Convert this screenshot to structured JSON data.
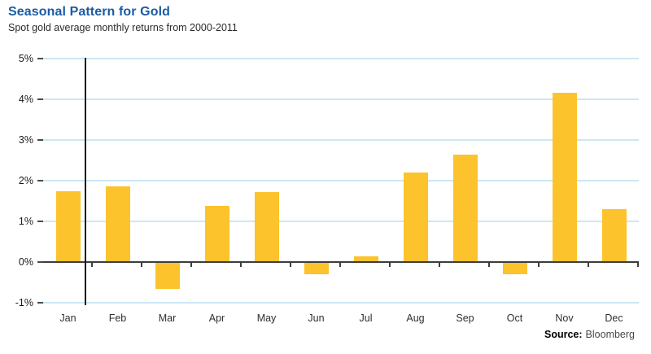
{
  "header": {
    "title": "Seasonal Pattern for Gold",
    "subtitle": "Spot gold average monthly returns from 2000-2011"
  },
  "footer": {
    "source_label": "Source:",
    "source_value": "Bloomberg"
  },
  "colors": {
    "title_blue": "#1A5CA4",
    "bar_gold": "#FDC32C",
    "gridline_blue": "#CBE8F4",
    "zero_line": "#3D3D3D",
    "axis_black": "#1A1A1A"
  },
  "chart_data": {
    "type": "bar",
    "title": "Seasonal Pattern for Gold",
    "subtitle": "Spot gold average monthly returns from 2000-2011",
    "categories": [
      "Jan",
      "Feb",
      "Mar",
      "Apr",
      "May",
      "Jun",
      "Jul",
      "Aug",
      "Sep",
      "Oct",
      "Nov",
      "Dec"
    ],
    "values": [
      1.75,
      1.86,
      -0.65,
      1.38,
      1.72,
      -0.29,
      0.15,
      2.21,
      2.65,
      -0.29,
      4.17,
      1.3
    ],
    "unit": "%",
    "xlabel": "",
    "ylabel": "",
    "ylim": [
      -1,
      5
    ],
    "yticks": [
      5,
      4,
      3,
      2,
      1,
      0,
      -1
    ],
    "ytick_labels": [
      "5%",
      "4%",
      "3%",
      "2%",
      "1%",
      "0%",
      "-1%"
    ],
    "grid": true,
    "legend": "none",
    "source": "Bloomberg"
  }
}
